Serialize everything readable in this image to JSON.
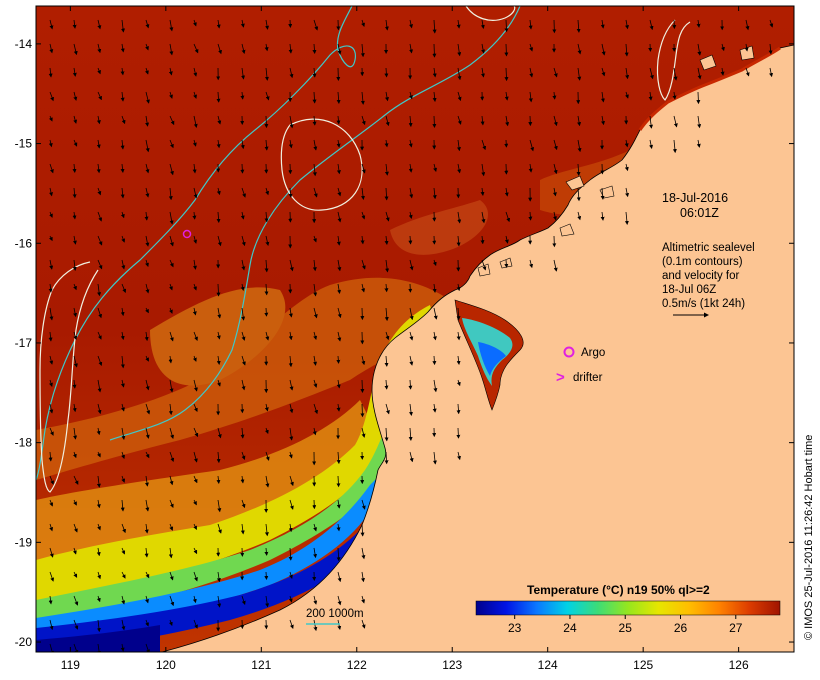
{
  "map": {
    "timestamp_date": "18-Jul-2016",
    "timestamp_time": "06:01Z",
    "legend_lines": [
      "Altimetric sealevel",
      "(0.1m contours)",
      "and velocity for",
      "18-Jul 06Z",
      "0.5m/s (1kt 24h)"
    ],
    "argo_label": "Argo",
    "drifter_label": "drifter",
    "drifter_symbol": ">",
    "bathy_label": "200  1000m",
    "credit": "© IMOS 25-Jul-2016 11:26:42 Hobart time",
    "colorbar": {
      "title": "Temperature (°C) n19 50% ql>=2",
      "min": 22.3,
      "max": 27.8,
      "ticks": [
        "23",
        "24",
        "25",
        "26",
        "27"
      ],
      "colors": [
        "#00008c",
        "#0014e6",
        "#0a78ff",
        "#00d2e6",
        "#3cdc78",
        "#96e61e",
        "#e6e600",
        "#ffbe00",
        "#ff8200",
        "#dc3c00",
        "#a01400"
      ]
    },
    "x_ticks": [
      "119",
      "120",
      "121",
      "122",
      "123",
      "124",
      "125",
      "126"
    ],
    "y_ticks": [
      "-14",
      "-15",
      "-16",
      "-17",
      "-18",
      "-19",
      "-20"
    ],
    "x_tick_values": [
      119,
      120,
      121,
      122,
      123,
      124,
      125,
      126
    ],
    "y_tick_values": [
      -14,
      -15,
      -16,
      -17,
      -18,
      -19,
      -20
    ],
    "lon_range": [
      118.64,
      126.58
    ],
    "lat_range": [
      -20.1,
      -13.62
    ],
    "colors": {
      "land": "#fcc593",
      "warm_sst": "#b01e00",
      "bathy_contour": "#40c8c8",
      "sealevel_contour": "#f0f0e0",
      "argo": "#e020e0",
      "drifter": "#e020e0",
      "coast": "#000000"
    }
  }
}
